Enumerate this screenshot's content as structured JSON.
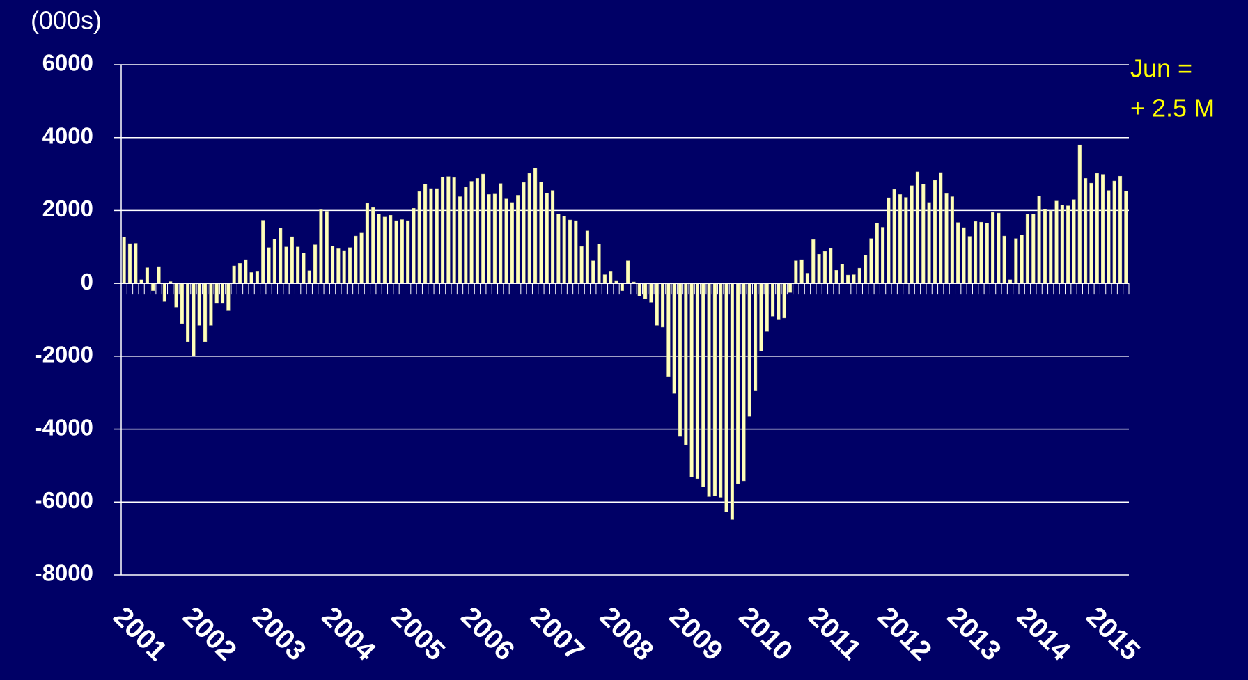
{
  "chart_data": {
    "type": "bar",
    "unit_label": "(000s)",
    "annotations": [
      "Jun =",
      "+ 2.5 M"
    ],
    "color": "#ffffbb",
    "grid": true,
    "ylim": [
      -8000,
      6000
    ],
    "yticks": [
      -8000,
      -6000,
      -4000,
      -2000,
      0,
      2000,
      4000,
      6000
    ],
    "categories": [
      "2001",
      null,
      null,
      null,
      null,
      null,
      null,
      null,
      null,
      null,
      null,
      null,
      "2002",
      null,
      null,
      null,
      null,
      null,
      null,
      null,
      null,
      null,
      null,
      null,
      "2003",
      null,
      null,
      null,
      null,
      null,
      null,
      null,
      null,
      null,
      null,
      null,
      "2004",
      null,
      null,
      null,
      null,
      null,
      null,
      null,
      null,
      null,
      null,
      null,
      "2005",
      null,
      null,
      null,
      null,
      null,
      null,
      null,
      null,
      null,
      null,
      null,
      "2006",
      null,
      null,
      null,
      null,
      null,
      null,
      null,
      null,
      null,
      null,
      null,
      "2007",
      null,
      null,
      null,
      null,
      null,
      null,
      null,
      null,
      null,
      null,
      null,
      "2008",
      null,
      null,
      null,
      null,
      null,
      null,
      null,
      null,
      null,
      null,
      null,
      "2009",
      null,
      null,
      null,
      null,
      null,
      null,
      null,
      null,
      null,
      null,
      null,
      "2010",
      null,
      null,
      null,
      null,
      null,
      null,
      null,
      null,
      null,
      null,
      null,
      "2011",
      null,
      null,
      null,
      null,
      null,
      null,
      null,
      null,
      null,
      null,
      null,
      "2012",
      null,
      null,
      null,
      null,
      null,
      null,
      null,
      null,
      null,
      null,
      null,
      "2013",
      null,
      null,
      null,
      null,
      null,
      null,
      null,
      null,
      null,
      null,
      null,
      "2014",
      null,
      null,
      null,
      null,
      null,
      null,
      null,
      null,
      null,
      null,
      null,
      "2015",
      null,
      null,
      null,
      null,
      null
    ],
    "values": [
      1270,
      1090,
      1100,
      100,
      430,
      -200,
      460,
      -500,
      50,
      -650,
      -1100,
      -1600,
      -2000,
      -1150,
      -1600,
      -1150,
      -550,
      -550,
      -750,
      480,
      550,
      650,
      300,
      320,
      1730,
      980,
      1220,
      1520,
      1000,
      1280,
      1000,
      830,
      350,
      1060,
      2020,
      1980,
      1020,
      950,
      900,
      980,
      1300,
      1380,
      2200,
      2080,
      1900,
      1820,
      1870,
      1720,
      1750,
      1720,
      2060,
      2520,
      2720,
      2600,
      2600,
      2920,
      2930,
      2900,
      2380,
      2640,
      2800,
      2880,
      3000,
      2440,
      2450,
      2740,
      2320,
      2220,
      2420,
      2770,
      3020,
      3160,
      2780,
      2480,
      2550,
      1900,
      1840,
      1740,
      1720,
      1010,
      1440,
      620,
      1080,
      240,
      320,
      60,
      -200,
      620,
      40,
      -350,
      -420,
      -520,
      -1150,
      -1200,
      -2550,
      -3020,
      -4200,
      -4430,
      -5310,
      -5360,
      -5580,
      -5850,
      -5830,
      -5870,
      -6270,
      -6480,
      -5500,
      -5420,
      -3650,
      -2950,
      -1860,
      -1320,
      -900,
      -1000,
      -950,
      -250,
      620,
      650,
      280,
      1200,
      800,
      880,
      960,
      360,
      530,
      230,
      240,
      420,
      780,
      1230,
      1650,
      1540,
      2350,
      2580,
      2440,
      2360,
      2680,
      3060,
      2720,
      2220,
      2830,
      3040,
      2460,
      2380,
      1670,
      1530,
      1290,
      1700,
      1680,
      1650,
      1950,
      1930,
      1300,
      100,
      1230,
      1330,
      1900,
      1900,
      2400,
      2030,
      1990,
      2260,
      2150,
      2130,
      2300,
      3800,
      2880,
      2750,
      3020,
      2990,
      2550,
      2810,
      2940,
      2530
    ]
  }
}
